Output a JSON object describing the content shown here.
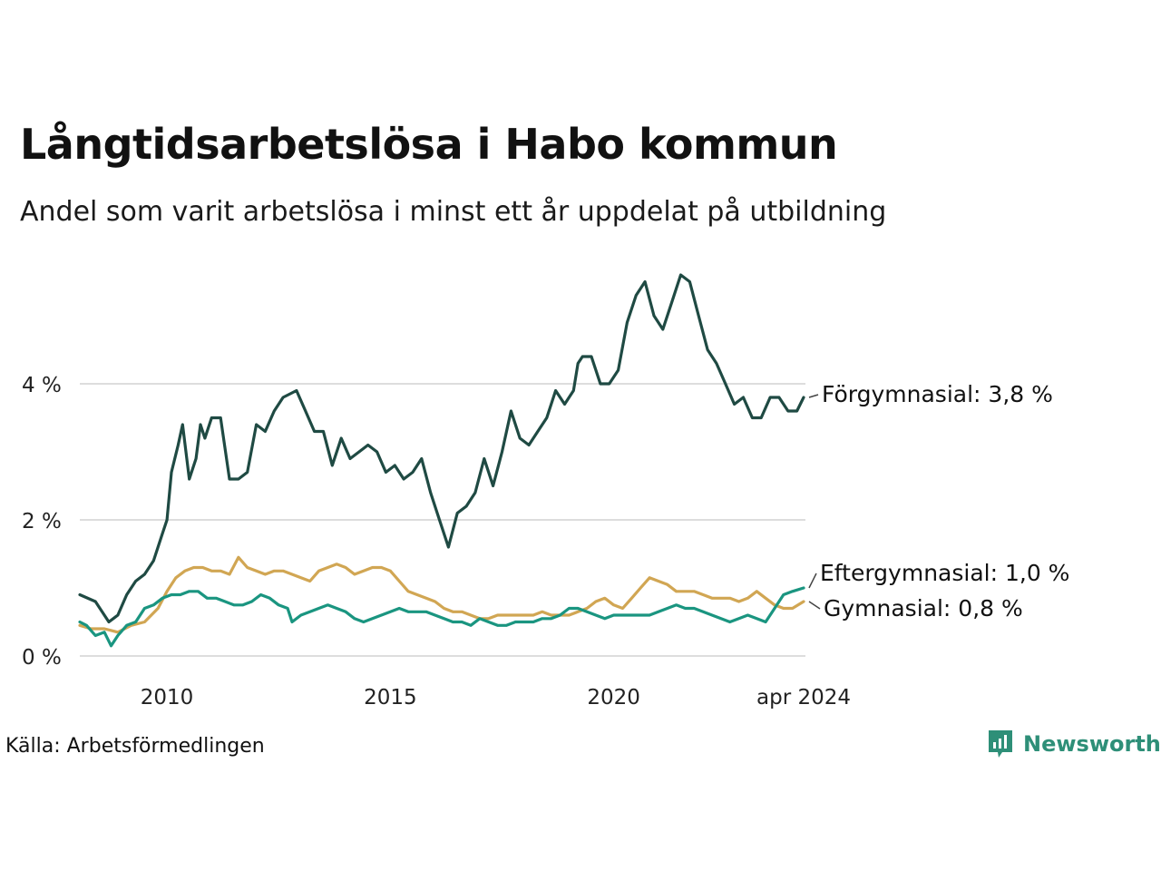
{
  "header": {
    "title": "Långtidsarbetslösa i Habo kommun",
    "subtitle": "Andel som varit arbetslösa i minst ett år uppdelat på utbildning"
  },
  "footer": {
    "source": "Källa: Arbetsförmedlingen",
    "brand": "Newsworthy",
    "brand_icon": "bar-chart-logo-icon"
  },
  "colors": {
    "forgymnasial": "#1f4a43",
    "eftergymnasial": "#1a9580",
    "gymnasial": "#d1a653",
    "grid": "#dddddd"
  },
  "chart_data": {
    "type": "line",
    "title": "Långtidsarbetslösa i Habo kommun",
    "subtitle": "Andel som varit arbetslösa i minst ett år uppdelat på utbildning",
    "xlabel": "",
    "ylabel": "",
    "ylim": [
      0,
      5.9
    ],
    "xlim": [
      2008.05,
      2024.25
    ],
    "yticks": [
      0,
      2,
      4
    ],
    "ytick_labels": [
      "0 %",
      "2 %",
      "4 %"
    ],
    "xticks": [
      2010,
      2015,
      2020,
      2024.25
    ],
    "xtick_labels": [
      "2010",
      "2015",
      "2020",
      "apr 2024"
    ],
    "grid": true,
    "series": [
      {
        "name": "Förgymnasial",
        "end_label": "Förgymnasial: 3,8 %",
        "color_key": "forgymnasial",
        "points": [
          [
            2008.05,
            0.9
          ],
          [
            2008.4,
            0.8
          ],
          [
            2008.7,
            0.5
          ],
          [
            2008.9,
            0.6
          ],
          [
            2009.1,
            0.9
          ],
          [
            2009.3,
            1.1
          ],
          [
            2009.5,
            1.2
          ],
          [
            2009.7,
            1.4
          ],
          [
            2009.9,
            1.8
          ],
          [
            2010.0,
            2.0
          ],
          [
            2010.1,
            2.7
          ],
          [
            2010.25,
            3.1
          ],
          [
            2010.35,
            3.4
          ],
          [
            2010.5,
            2.6
          ],
          [
            2010.65,
            2.9
          ],
          [
            2010.75,
            3.4
          ],
          [
            2010.85,
            3.2
          ],
          [
            2011.0,
            3.5
          ],
          [
            2011.2,
            3.5
          ],
          [
            2011.4,
            2.6
          ],
          [
            2011.6,
            2.6
          ],
          [
            2011.8,
            2.7
          ],
          [
            2012.0,
            3.4
          ],
          [
            2012.2,
            3.3
          ],
          [
            2012.4,
            3.6
          ],
          [
            2012.6,
            3.8
          ],
          [
            2012.9,
            3.9
          ],
          [
            2013.1,
            3.6
          ],
          [
            2013.3,
            3.3
          ],
          [
            2013.5,
            3.3
          ],
          [
            2013.7,
            2.8
          ],
          [
            2013.9,
            3.2
          ],
          [
            2014.1,
            2.9
          ],
          [
            2014.3,
            3.0
          ],
          [
            2014.5,
            3.1
          ],
          [
            2014.7,
            3.0
          ],
          [
            2014.9,
            2.7
          ],
          [
            2015.1,
            2.8
          ],
          [
            2015.3,
            2.6
          ],
          [
            2015.5,
            2.7
          ],
          [
            2015.7,
            2.9
          ],
          [
            2015.9,
            2.4
          ],
          [
            2016.1,
            2.0
          ],
          [
            2016.3,
            1.6
          ],
          [
            2016.5,
            2.1
          ],
          [
            2016.7,
            2.2
          ],
          [
            2016.9,
            2.4
          ],
          [
            2017.1,
            2.9
          ],
          [
            2017.3,
            2.5
          ],
          [
            2017.5,
            3.0
          ],
          [
            2017.7,
            3.6
          ],
          [
            2017.9,
            3.2
          ],
          [
            2018.1,
            3.1
          ],
          [
            2018.3,
            3.3
          ],
          [
            2018.5,
            3.5
          ],
          [
            2018.7,
            3.9
          ],
          [
            2018.9,
            3.7
          ],
          [
            2019.1,
            3.9
          ],
          [
            2019.2,
            4.3
          ],
          [
            2019.3,
            4.4
          ],
          [
            2019.5,
            4.4
          ],
          [
            2019.7,
            4.0
          ],
          [
            2019.9,
            4.0
          ],
          [
            2020.1,
            4.2
          ],
          [
            2020.3,
            4.9
          ],
          [
            2020.5,
            5.3
          ],
          [
            2020.7,
            5.5
          ],
          [
            2020.9,
            5.0
          ],
          [
            2021.1,
            4.8
          ],
          [
            2021.3,
            5.2
          ],
          [
            2021.5,
            5.6
          ],
          [
            2021.7,
            5.5
          ],
          [
            2021.9,
            5.0
          ],
          [
            2022.1,
            4.5
          ],
          [
            2022.3,
            4.3
          ],
          [
            2022.5,
            4.0
          ],
          [
            2022.7,
            3.7
          ],
          [
            2022.9,
            3.8
          ],
          [
            2023.1,
            3.5
          ],
          [
            2023.3,
            3.5
          ],
          [
            2023.5,
            3.8
          ],
          [
            2023.7,
            3.8
          ],
          [
            2023.9,
            3.6
          ],
          [
            2024.1,
            3.6
          ],
          [
            2024.25,
            3.8
          ]
        ]
      },
      {
        "name": "Eftergymnasial",
        "end_label": "Eftergymnasial: 1,0 %",
        "color_key": "eftergymnasial",
        "points": [
          [
            2008.05,
            0.5
          ],
          [
            2008.2,
            0.45
          ],
          [
            2008.4,
            0.3
          ],
          [
            2008.6,
            0.35
          ],
          [
            2008.75,
            0.15
          ],
          [
            2008.9,
            0.3
          ],
          [
            2009.1,
            0.45
          ],
          [
            2009.3,
            0.5
          ],
          [
            2009.5,
            0.7
          ],
          [
            2009.7,
            0.75
          ],
          [
            2009.9,
            0.85
          ],
          [
            2010.1,
            0.9
          ],
          [
            2010.3,
            0.9
          ],
          [
            2010.5,
            0.95
          ],
          [
            2010.7,
            0.95
          ],
          [
            2010.9,
            0.85
          ],
          [
            2011.1,
            0.85
          ],
          [
            2011.3,
            0.8
          ],
          [
            2011.5,
            0.75
          ],
          [
            2011.7,
            0.75
          ],
          [
            2011.9,
            0.8
          ],
          [
            2012.1,
            0.9
          ],
          [
            2012.3,
            0.85
          ],
          [
            2012.5,
            0.75
          ],
          [
            2012.7,
            0.7
          ],
          [
            2012.8,
            0.5
          ],
          [
            2013.0,
            0.6
          ],
          [
            2013.2,
            0.65
          ],
          [
            2013.4,
            0.7
          ],
          [
            2013.6,
            0.75
          ],
          [
            2013.8,
            0.7
          ],
          [
            2014.0,
            0.65
          ],
          [
            2014.2,
            0.55
          ],
          [
            2014.4,
            0.5
          ],
          [
            2014.6,
            0.55
          ],
          [
            2014.8,
            0.6
          ],
          [
            2015.0,
            0.65
          ],
          [
            2015.2,
            0.7
          ],
          [
            2015.4,
            0.65
          ],
          [
            2015.6,
            0.65
          ],
          [
            2015.8,
            0.65
          ],
          [
            2016.0,
            0.6
          ],
          [
            2016.2,
            0.55
          ],
          [
            2016.4,
            0.5
          ],
          [
            2016.6,
            0.5
          ],
          [
            2016.8,
            0.45
          ],
          [
            2017.0,
            0.55
          ],
          [
            2017.2,
            0.5
          ],
          [
            2017.4,
            0.45
          ],
          [
            2017.6,
            0.45
          ],
          [
            2017.8,
            0.5
          ],
          [
            2018.0,
            0.5
          ],
          [
            2018.2,
            0.5
          ],
          [
            2018.4,
            0.55
          ],
          [
            2018.6,
            0.55
          ],
          [
            2018.8,
            0.6
          ],
          [
            2019.0,
            0.7
          ],
          [
            2019.2,
            0.7
          ],
          [
            2019.4,
            0.65
          ],
          [
            2019.6,
            0.6
          ],
          [
            2019.8,
            0.55
          ],
          [
            2020.0,
            0.6
          ],
          [
            2020.2,
            0.6
          ],
          [
            2020.4,
            0.6
          ],
          [
            2020.6,
            0.6
          ],
          [
            2020.8,
            0.6
          ],
          [
            2021.0,
            0.65
          ],
          [
            2021.2,
            0.7
          ],
          [
            2021.4,
            0.75
          ],
          [
            2021.6,
            0.7
          ],
          [
            2021.8,
            0.7
          ],
          [
            2022.0,
            0.65
          ],
          [
            2022.2,
            0.6
          ],
          [
            2022.4,
            0.55
          ],
          [
            2022.6,
            0.5
          ],
          [
            2022.8,
            0.55
          ],
          [
            2023.0,
            0.6
          ],
          [
            2023.2,
            0.55
          ],
          [
            2023.4,
            0.5
          ],
          [
            2023.6,
            0.7
          ],
          [
            2023.8,
            0.9
          ],
          [
            2024.0,
            0.95
          ],
          [
            2024.25,
            1.0
          ]
        ]
      },
      {
        "name": "Gymnasial",
        "end_label": "Gymnasial: 0,8 %",
        "color_key": "gymnasial",
        "points": [
          [
            2008.05,
            0.45
          ],
          [
            2008.3,
            0.4
          ],
          [
            2008.6,
            0.4
          ],
          [
            2008.9,
            0.35
          ],
          [
            2009.2,
            0.45
          ],
          [
            2009.5,
            0.5
          ],
          [
            2009.8,
            0.7
          ],
          [
            2010.0,
            0.95
          ],
          [
            2010.2,
            1.15
          ],
          [
            2010.4,
            1.25
          ],
          [
            2010.6,
            1.3
          ],
          [
            2010.8,
            1.3
          ],
          [
            2011.0,
            1.25
          ],
          [
            2011.2,
            1.25
          ],
          [
            2011.4,
            1.2
          ],
          [
            2011.6,
            1.45
          ],
          [
            2011.8,
            1.3
          ],
          [
            2012.0,
            1.25
          ],
          [
            2012.2,
            1.2
          ],
          [
            2012.4,
            1.25
          ],
          [
            2012.6,
            1.25
          ],
          [
            2012.8,
            1.2
          ],
          [
            2013.0,
            1.15
          ],
          [
            2013.2,
            1.1
          ],
          [
            2013.4,
            1.25
          ],
          [
            2013.6,
            1.3
          ],
          [
            2013.8,
            1.35
          ],
          [
            2014.0,
            1.3
          ],
          [
            2014.2,
            1.2
          ],
          [
            2014.4,
            1.25
          ],
          [
            2014.6,
            1.3
          ],
          [
            2014.8,
            1.3
          ],
          [
            2015.0,
            1.25
          ],
          [
            2015.2,
            1.1
          ],
          [
            2015.4,
            0.95
          ],
          [
            2015.6,
            0.9
          ],
          [
            2015.8,
            0.85
          ],
          [
            2016.0,
            0.8
          ],
          [
            2016.2,
            0.7
          ],
          [
            2016.4,
            0.65
          ],
          [
            2016.6,
            0.65
          ],
          [
            2016.8,
            0.6
          ],
          [
            2017.0,
            0.55
          ],
          [
            2017.2,
            0.55
          ],
          [
            2017.4,
            0.6
          ],
          [
            2017.6,
            0.6
          ],
          [
            2017.8,
            0.6
          ],
          [
            2018.0,
            0.6
          ],
          [
            2018.2,
            0.6
          ],
          [
            2018.4,
            0.65
          ],
          [
            2018.6,
            0.6
          ],
          [
            2018.8,
            0.6
          ],
          [
            2019.0,
            0.6
          ],
          [
            2019.2,
            0.65
          ],
          [
            2019.4,
            0.7
          ],
          [
            2019.6,
            0.8
          ],
          [
            2019.8,
            0.85
          ],
          [
            2020.0,
            0.75
          ],
          [
            2020.2,
            0.7
          ],
          [
            2020.4,
            0.85
          ],
          [
            2020.6,
            1.0
          ],
          [
            2020.8,
            1.15
          ],
          [
            2021.0,
            1.1
          ],
          [
            2021.2,
            1.05
          ],
          [
            2021.4,
            0.95
          ],
          [
            2021.6,
            0.95
          ],
          [
            2021.8,
            0.95
          ],
          [
            2022.0,
            0.9
          ],
          [
            2022.2,
            0.85
          ],
          [
            2022.4,
            0.85
          ],
          [
            2022.6,
            0.85
          ],
          [
            2022.8,
            0.8
          ],
          [
            2023.0,
            0.85
          ],
          [
            2023.2,
            0.95
          ],
          [
            2023.4,
            0.85
          ],
          [
            2023.6,
            0.75
          ],
          [
            2023.8,
            0.7
          ],
          [
            2024.0,
            0.7
          ],
          [
            2024.25,
            0.8
          ]
        ]
      }
    ]
  }
}
